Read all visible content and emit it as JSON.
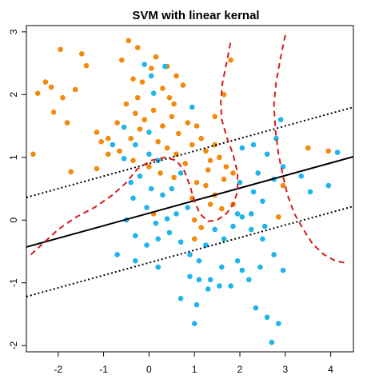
{
  "chart_data": {
    "type": "scatter",
    "title": "SVM with linear kernal",
    "xlabel": "",
    "ylabel": "",
    "xlim": [
      -2.7,
      4.5
    ],
    "ylim": [
      -2.1,
      3.1
    ],
    "x_ticks": [
      -2,
      -1,
      0,
      1,
      2,
      3,
      4
    ],
    "y_ticks": [
      -2,
      -1,
      0,
      1,
      2,
      3
    ],
    "grid": false,
    "colors": {
      "class_a": "#f28a0c",
      "class_b": "#1eb4ec",
      "svm_line": "#000000",
      "bayes_boundary": "#d7191c"
    },
    "svm_boundary": {
      "intercept": 0.11,
      "slope": 0.2
    },
    "svm_margin_offset": 0.79,
    "series": [
      {
        "points": [
          [
            -2.45,
            2.02
          ],
          [
            -2.28,
            2.2
          ],
          [
            -2.15,
            2.12
          ],
          [
            -2.1,
            1.72
          ],
          [
            -1.95,
            2.72
          ],
          [
            -1.9,
            1.95
          ],
          [
            -1.8,
            1.55
          ],
          [
            -1.62,
            2.08
          ],
          [
            -1.48,
            2.65
          ],
          [
            -1.38,
            2.46
          ],
          [
            -1.72,
            0.77
          ],
          [
            -1.15,
            1.4
          ],
          [
            -1.05,
            1.25
          ],
          [
            -0.9,
            1.05
          ],
          [
            -1.15,
            0.82
          ],
          [
            -0.45,
            2.86
          ],
          [
            -0.25,
            2.75
          ],
          [
            -0.6,
            2.55
          ],
          [
            -0.35,
            2.25
          ],
          [
            -0.15,
            2.2
          ],
          [
            0.05,
            2.42
          ],
          [
            0.15,
            2.6
          ],
          [
            0.3,
            2.1
          ],
          [
            0.45,
            1.95
          ],
          [
            0.6,
            2.3
          ],
          [
            0.75,
            2.15
          ],
          [
            -0.5,
            1.85
          ],
          [
            -0.3,
            1.7
          ],
          [
            -0.1,
            1.6
          ],
          [
            0.1,
            1.75
          ],
          [
            0.3,
            1.5
          ],
          [
            0.5,
            1.65
          ],
          [
            0.65,
            1.38
          ],
          [
            0.85,
            1.55
          ],
          [
            -0.7,
            1.55
          ],
          [
            -0.4,
            1.3
          ],
          [
            -0.2,
            1.45
          ],
          [
            0.2,
            1.25
          ],
          [
            0.4,
            1.15
          ],
          [
            0.6,
            1.05
          ],
          [
            -0.65,
            1.1
          ],
          [
            -0.35,
            0.95
          ],
          [
            0.0,
            0.85
          ],
          [
            0.25,
            0.75
          ],
          [
            0.55,
            0.68
          ],
          [
            0.8,
            0.9
          ],
          [
            0.95,
            1.2
          ],
          [
            1.05,
            1.5
          ],
          [
            1.15,
            1.3
          ],
          [
            1.25,
            1.1
          ],
          [
            1.35,
            0.95
          ],
          [
            1.45,
            1.2
          ],
          [
            1.55,
            1.0
          ],
          [
            1.7,
            0.85
          ],
          [
            1.85,
            0.75
          ],
          [
            1.05,
            0.6
          ],
          [
            1.25,
            0.55
          ],
          [
            1.45,
            0.4
          ],
          [
            1.65,
            0.65
          ],
          [
            1.35,
            0.25
          ],
          [
            1.6,
            0.18
          ],
          [
            1.85,
            0.25
          ],
          [
            0.95,
            0.35
          ],
          [
            1.0,
            0.0
          ],
          [
            1.15,
            -0.12
          ],
          [
            1.45,
            1.65
          ],
          [
            1.65,
            2.0
          ],
          [
            1.8,
            2.55
          ],
          [
            0.55,
            1.85
          ],
          [
            -0.9,
            1.3
          ],
          [
            3.5,
            1.15
          ],
          [
            3.95,
            1.1
          ],
          [
            2.95,
            0.55
          ],
          [
            2.85,
            0.05
          ],
          [
            0.1,
            0.1
          ],
          [
            1.0,
            -0.3
          ],
          [
            -2.55,
            1.05
          ],
          [
            -0.25,
            1.95
          ],
          [
            0.4,
            2.45
          ],
          [
            1.3,
            0.8
          ]
        ]
      },
      {
        "points": [
          [
            -0.1,
            2.48
          ],
          [
            0.05,
            2.3
          ],
          [
            0.35,
            2.45
          ],
          [
            0.1,
            2.02
          ],
          [
            -0.55,
            1.48
          ],
          [
            -0.8,
            1.2
          ],
          [
            -0.55,
            0.98
          ],
          [
            -0.3,
            1.2
          ],
          [
            0.0,
            1.05
          ],
          [
            0.2,
            0.95
          ],
          [
            -0.2,
            0.7
          ],
          [
            0.05,
            0.5
          ],
          [
            0.3,
            0.4
          ],
          [
            0.5,
            0.5
          ],
          [
            0.7,
            0.75
          ],
          [
            0.85,
            0.2
          ],
          [
            0.6,
            0.1
          ],
          [
            0.4,
            0.02
          ],
          [
            0.15,
            -0.05
          ],
          [
            -0.05,
            0.2
          ],
          [
            -0.35,
            0.35
          ],
          [
            -0.5,
            0.0
          ],
          [
            -0.3,
            -0.25
          ],
          [
            -0.05,
            -0.4
          ],
          [
            0.2,
            -0.3
          ],
          [
            0.45,
            -0.2
          ],
          [
            0.7,
            -0.35
          ],
          [
            0.9,
            -0.55
          ],
          [
            1.1,
            -0.65
          ],
          [
            1.25,
            -0.4
          ],
          [
            1.45,
            -0.15
          ],
          [
            1.65,
            -0.3
          ],
          [
            1.85,
            -0.1
          ],
          [
            2.05,
            0.05
          ],
          [
            2.25,
            -0.15
          ],
          [
            2.5,
            -0.3
          ],
          [
            2.75,
            -0.55
          ],
          [
            2.95,
            -0.8
          ],
          [
            2.45,
            -0.75
          ],
          [
            2.2,
            -0.95
          ],
          [
            1.95,
            -0.65
          ],
          [
            1.6,
            -0.75
          ],
          [
            1.35,
            -0.95
          ],
          [
            1.1,
            -0.95
          ],
          [
            0.9,
            -0.9
          ],
          [
            0.7,
            -1.25
          ],
          [
            1.05,
            -1.35
          ],
          [
            1.3,
            -1.1
          ],
          [
            1.55,
            -1.05
          ],
          [
            1.8,
            -1.05
          ],
          [
            2.05,
            -0.8
          ],
          [
            2.35,
            -1.4
          ],
          [
            2.6,
            -1.55
          ],
          [
            2.85,
            -1.65
          ],
          [
            2.7,
            -1.95
          ],
          [
            1.0,
            -1.65
          ],
          [
            -0.4,
            0.6
          ],
          [
            -0.7,
            -0.55
          ],
          [
            -0.3,
            -0.65
          ],
          [
            0.2,
            -0.75
          ],
          [
            2.0,
            0.6
          ],
          [
            2.3,
            0.45
          ],
          [
            2.5,
            0.3
          ],
          [
            2.75,
            0.65
          ],
          [
            2.95,
            0.85
          ],
          [
            2.8,
            1.3
          ],
          [
            2.6,
            1.05
          ],
          [
            2.3,
            1.2
          ],
          [
            2.05,
            1.15
          ],
          [
            3.35,
            0.7
          ],
          [
            3.55,
            0.45
          ],
          [
            3.95,
            0.55
          ],
          [
            4.15,
            1.08
          ],
          [
            2.9,
            1.6
          ],
          [
            2.25,
            0.1
          ],
          [
            2.4,
            0.75
          ],
          [
            1.95,
            0.1
          ],
          [
            2.55,
            -0.1
          ],
          [
            0.95,
            1.8
          ],
          [
            0.0,
            1.4
          ]
        ]
      }
    ],
    "bayes_boundary_paths": [
      [
        [
          -2.6,
          -0.55
        ],
        [
          -2.3,
          -0.35
        ],
        [
          -2.0,
          -0.15
        ],
        [
          -1.6,
          0.05
        ],
        [
          -1.2,
          0.2
        ],
        [
          -0.8,
          0.4
        ],
        [
          -0.5,
          0.6
        ],
        [
          -0.25,
          0.82
        ],
        [
          0.05,
          0.95
        ],
        [
          0.35,
          1.0
        ],
        [
          0.6,
          0.95
        ],
        [
          0.78,
          0.78
        ],
        [
          0.9,
          0.55
        ],
        [
          1.0,
          0.3
        ],
        [
          1.12,
          0.1
        ],
        [
          1.3,
          -0.02
        ],
        [
          1.5,
          0.0
        ],
        [
          1.7,
          0.1
        ],
        [
          1.85,
          0.25
        ],
        [
          1.95,
          0.45
        ],
        [
          1.95,
          0.75
        ],
        [
          1.85,
          1.05
        ],
        [
          1.72,
          1.3
        ],
        [
          1.6,
          1.6
        ],
        [
          1.58,
          1.9
        ],
        [
          1.62,
          2.2
        ],
        [
          1.72,
          2.55
        ],
        [
          1.8,
          2.85
        ]
      ],
      [
        [
          3.0,
          2.95
        ],
        [
          2.9,
          2.6
        ],
        [
          2.8,
          2.2
        ],
        [
          2.75,
          1.85
        ],
        [
          2.78,
          1.45
        ],
        [
          2.85,
          1.05
        ],
        [
          2.95,
          0.7
        ],
        [
          3.05,
          0.4
        ],
        [
          3.2,
          0.1
        ],
        [
          3.4,
          -0.15
        ],
        [
          3.6,
          -0.38
        ],
        [
          3.85,
          -0.55
        ],
        [
          4.1,
          -0.65
        ],
        [
          4.3,
          -0.68
        ]
      ]
    ]
  }
}
